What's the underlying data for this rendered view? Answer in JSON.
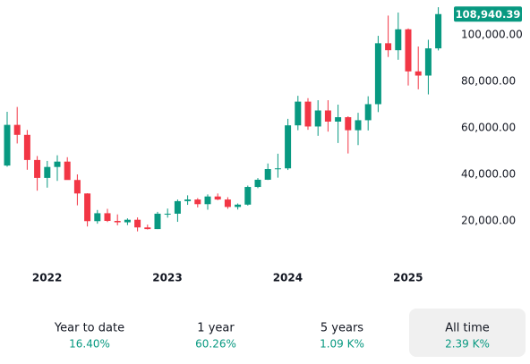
{
  "chart_data": {
    "type": "candlestick",
    "categories": [
      null,
      null,
      null,
      "2022",
      null,
      null,
      null,
      null,
      null,
      null,
      null,
      null,
      null,
      null,
      null,
      "2023",
      null,
      null,
      null,
      null,
      null,
      null,
      null,
      null,
      null,
      null,
      null,
      "2024",
      null,
      null,
      null,
      null,
      null,
      null,
      null,
      null,
      null,
      null,
      null,
      "2025",
      null,
      null,
      null,
      null
    ],
    "open": [
      43800,
      61300,
      57000,
      46200,
      38500,
      43200,
      45500,
      37600,
      31800,
      19900,
      23300,
      20000,
      19400,
      20500,
      17200,
      16500,
      23100,
      23100,
      28500,
      29200,
      27200,
      30500,
      29200,
      26000,
      27000,
      34600,
      37700,
      42300,
      42600,
      61100,
      71300,
      60600,
      67500,
      62700,
      64600,
      59000,
      63300,
      70200,
      96400,
      93400,
      102400,
      84300,
      82500,
      94200
    ],
    "high": [
      66900,
      69000,
      59100,
      47900,
      45800,
      48200,
      47400,
      40000,
      31900,
      24700,
      25200,
      22800,
      21100,
      21500,
      18400,
      23900,
      25300,
      29200,
      31000,
      29800,
      31400,
      31800,
      30200,
      27500,
      35200,
      38400,
      44700,
      48900,
      63900,
      73800,
      72800,
      71900,
      71900,
      70000,
      65000,
      66500,
      73600,
      99600,
      108300,
      109600,
      102800,
      95000,
      97900,
      111900
    ],
    "low": [
      43300,
      53300,
      42000,
      33000,
      34300,
      37200,
      37700,
      26700,
      17600,
      18800,
      19500,
      18100,
      18200,
      15500,
      16300,
      16500,
      21400,
      19600,
      26900,
      25800,
      24800,
      28900,
      25200,
      24900,
      26600,
      34100,
      37600,
      38600,
      41900,
      59000,
      59200,
      56600,
      58400,
      53500,
      49000,
      52600,
      58900,
      66800,
      90500,
      89300,
      78200,
      76600,
      74400,
      93300
    ],
    "close": [
      61300,
      57000,
      46200,
      38500,
      43200,
      45500,
      37600,
      31800,
      19900,
      23300,
      20000,
      19400,
      20500,
      17200,
      16500,
      23100,
      23100,
      28500,
      29200,
      27200,
      30500,
      29200,
      26000,
      27000,
      34600,
      37700,
      42300,
      42600,
      61100,
      71300,
      60600,
      67500,
      62700,
      64600,
      59000,
      63300,
      70200,
      96400,
      93400,
      102400,
      84300,
      82500,
      94200,
      108940.39
    ],
    "last_price_label": "108,940.39",
    "up_color": "#089981",
    "down_color": "#f23645",
    "ylim": [
      0,
      115000
    ],
    "yticks": [
      {
        "value": 20000,
        "label": "20,000.00"
      },
      {
        "value": 40000,
        "label": "40,000.00"
      },
      {
        "value": 60000,
        "label": "60,000.00"
      },
      {
        "value": 80000,
        "label": "80,000.00"
      },
      {
        "value": 100000,
        "label": "100,000.00"
      }
    ],
    "grid": false
  },
  "ranges": [
    {
      "label": "Year to date",
      "change": "16.40%",
      "selected": false
    },
    {
      "label": "1 year",
      "change": "60.26%",
      "selected": false
    },
    {
      "label": "5 years",
      "change": "1.09 K%",
      "selected": false
    },
    {
      "label": "All time",
      "change": "2.39 K%",
      "selected": true
    }
  ]
}
